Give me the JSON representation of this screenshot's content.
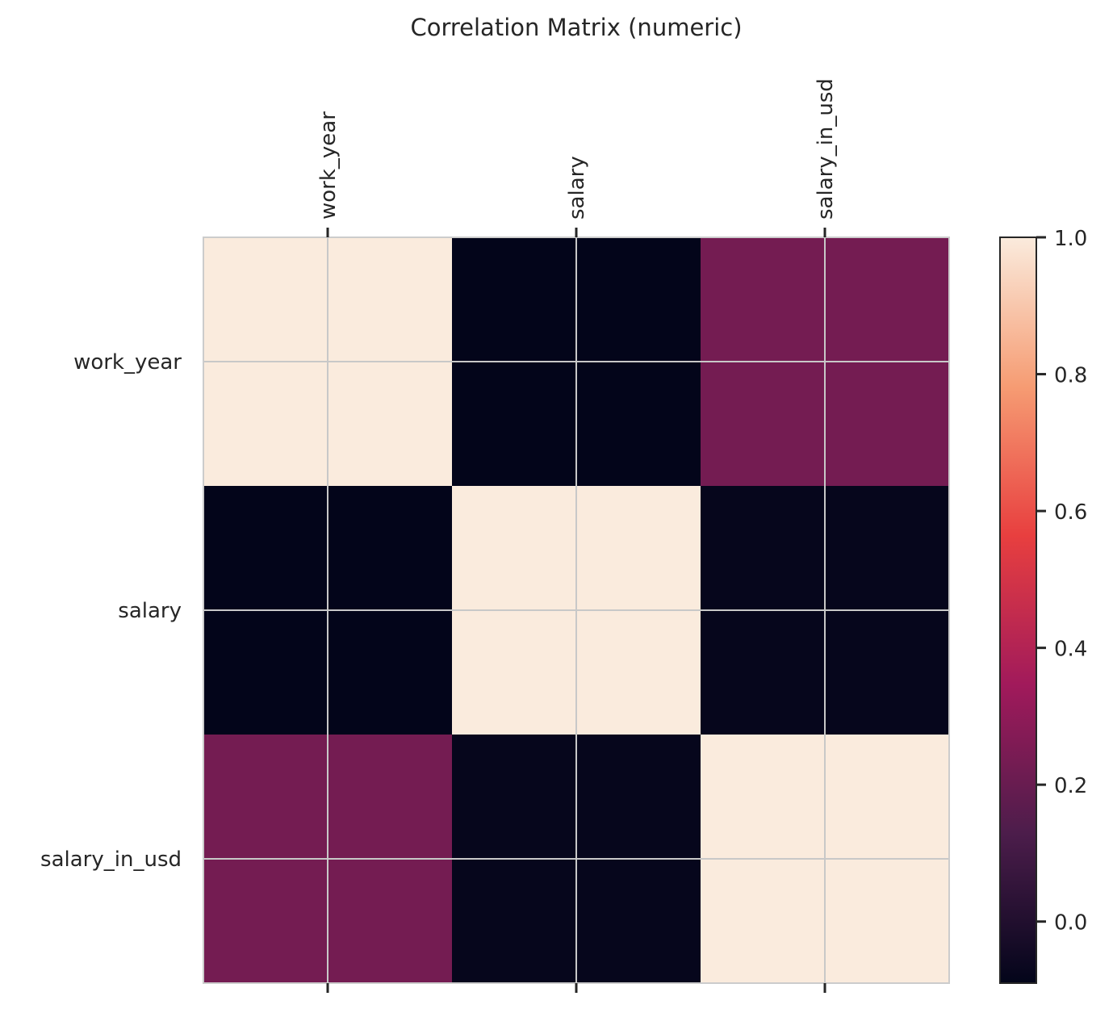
{
  "chart_data": {
    "type": "heatmap",
    "title": "Correlation Matrix (numeric)",
    "x_labels": [
      "work_year",
      "salary",
      "salary_in_usd"
    ],
    "y_labels": [
      "work_year",
      "salary",
      "salary_in_usd"
    ],
    "values": [
      [
        1.0,
        -0.09,
        0.23
      ],
      [
        -0.09,
        1.0,
        -0.08
      ],
      [
        0.23,
        -0.08,
        1.0
      ]
    ],
    "colorbar": {
      "min": -0.09,
      "max": 1.0,
      "ticks": [
        "0.0",
        "0.2",
        "0.4",
        "0.6",
        "0.8",
        "1.0"
      ]
    },
    "colormap": [
      "#03051a",
      "#4c1d4b",
      "#a11a5b",
      "#e83f3f",
      "#f69c73",
      "#faebdd"
    ],
    "grid": true
  }
}
